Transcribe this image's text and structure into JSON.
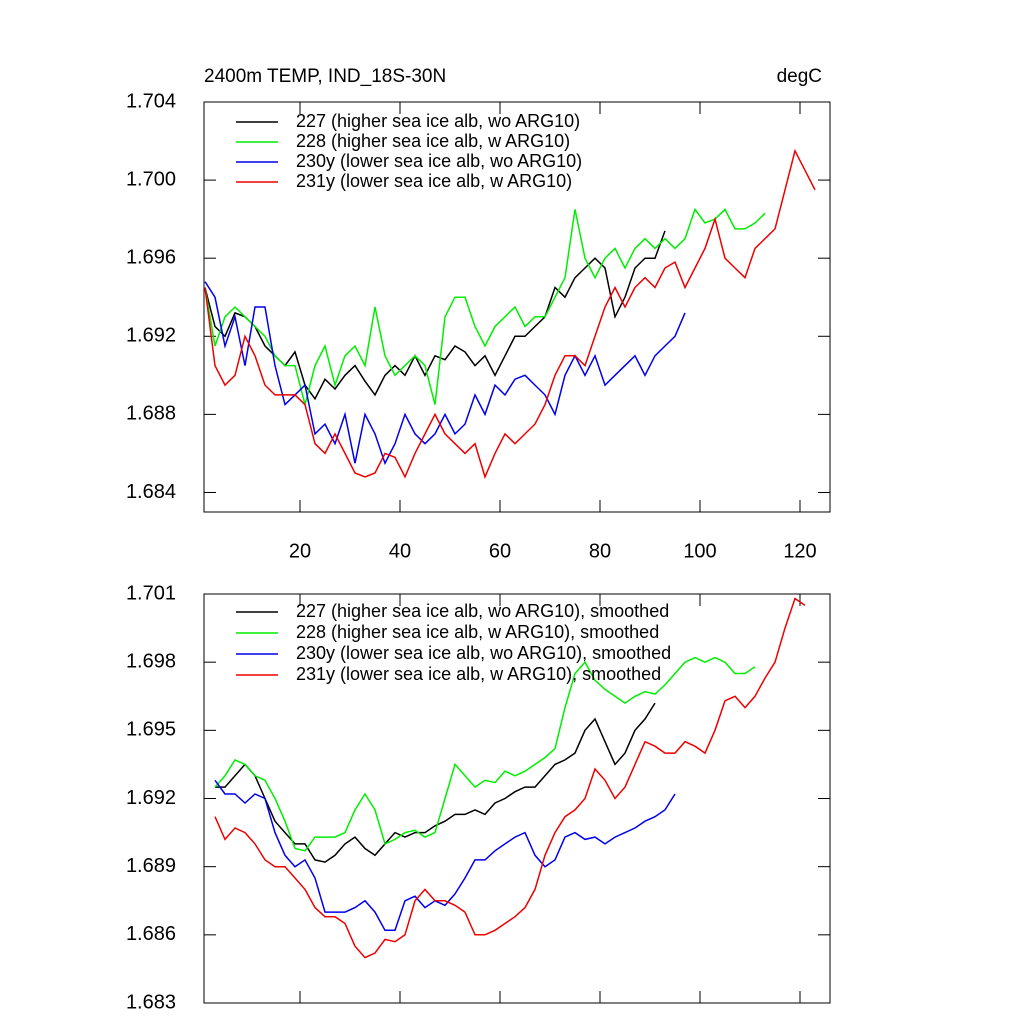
{
  "chart_data": [
    {
      "type": "line",
      "title": "2400m TEMP, IND_18S-30N",
      "unit": "degC",
      "x": [
        1,
        3,
        5,
        7,
        9,
        11,
        13,
        15,
        17,
        19,
        21,
        23,
        25,
        27,
        29,
        31,
        33,
        35,
        37,
        39,
        41,
        43,
        45,
        47,
        49,
        51,
        53,
        55,
        57,
        59,
        61,
        63,
        65,
        67,
        69,
        71,
        73,
        75,
        77,
        79,
        81,
        83,
        85,
        87,
        89,
        91,
        93,
        95,
        97,
        99,
        101,
        103,
        105,
        107,
        109,
        111,
        113,
        115,
        117,
        119,
        121,
        123
      ],
      "xlim": [
        0.8,
        126
      ],
      "xticks": [
        20,
        40,
        60,
        80,
        100,
        120
      ],
      "xtick_labels": true,
      "ylim": [
        1.683,
        1.704
      ],
      "yticks": [
        1.684,
        1.688,
        1.692,
        1.696,
        {
          "value": 1.7,
          "label": "1.700"
        },
        1.704
      ],
      "legend": "upper left",
      "series": [
        {
          "name": "227 (higher sea ice alb, wo ARG10)",
          "color": "#000000",
          "values": [
            1.6945,
            1.6925,
            1.692,
            1.6932,
            1.693,
            1.6925,
            1.6915,
            1.691,
            1.6905,
            1.6912,
            1.6895,
            1.6888,
            1.6898,
            1.6893,
            1.69,
            1.6905,
            1.6897,
            1.689,
            1.69,
            1.6905,
            1.69,
            1.691,
            1.69,
            1.691,
            1.6908,
            1.6915,
            1.6912,
            1.6905,
            1.691,
            1.69,
            1.691,
            1.692,
            1.692,
            1.6925,
            1.693,
            1.6945,
            1.694,
            1.695,
            1.6955,
            1.696,
            1.6955,
            1.693,
            1.694,
            1.6955,
            1.696,
            1.696,
            1.6974,
            null,
            null,
            null,
            null,
            null,
            null,
            null,
            null,
            null,
            null,
            null,
            null,
            null,
            null,
            null
          ]
        },
        {
          "name": "228 (higher sea ice alb, w ARG10)",
          "color": "#00ee00",
          "values": [
            1.6945,
            1.6915,
            1.693,
            1.6935,
            1.693,
            1.6925,
            1.692,
            1.691,
            1.6905,
            1.6905,
            1.6885,
            1.6905,
            1.6915,
            1.6895,
            1.691,
            1.6915,
            1.6905,
            1.6935,
            1.691,
            1.69,
            1.6905,
            1.691,
            1.6905,
            1.6885,
            1.693,
            1.694,
            1.694,
            1.6925,
            1.6915,
            1.6925,
            1.693,
            1.6935,
            1.6925,
            1.693,
            1.693,
            1.694,
            1.695,
            1.6985,
            1.696,
            1.695,
            1.696,
            1.6965,
            1.6955,
            1.6965,
            1.697,
            1.6965,
            1.697,
            1.6965,
            1.697,
            1.6985,
            1.6978,
            1.698,
            1.6985,
            1.6975,
            1.6975,
            1.6978,
            1.6983,
            null,
            null,
            null,
            null,
            null
          ]
        },
        {
          "name": "230y (lower sea ice alb, wo ARG10)",
          "color": "#0000ee",
          "values": [
            1.6948,
            1.694,
            1.6915,
            1.693,
            1.6905,
            1.6935,
            1.6935,
            1.6905,
            1.6885,
            1.689,
            1.6895,
            1.687,
            1.6875,
            1.6865,
            1.688,
            1.6855,
            1.688,
            1.687,
            1.6855,
            1.6865,
            1.688,
            1.687,
            1.6865,
            1.687,
            1.688,
            1.687,
            1.6875,
            1.689,
            1.688,
            1.6895,
            1.689,
            1.6898,
            1.69,
            1.6895,
            1.689,
            1.688,
            1.69,
            1.691,
            1.69,
            1.691,
            1.6895,
            1.69,
            1.6905,
            1.691,
            1.69,
            1.691,
            1.6915,
            1.692,
            1.6932,
            null,
            null,
            null,
            null,
            null,
            null,
            null,
            null,
            null,
            null,
            null,
            null,
            null
          ]
        },
        {
          "name": "231y (lower sea ice alb, w ARG10)",
          "color": "#ee0000",
          "values": [
            1.6945,
            1.6905,
            1.6895,
            1.69,
            1.692,
            1.691,
            1.6895,
            1.689,
            1.689,
            1.689,
            1.6885,
            1.6865,
            1.686,
            1.687,
            1.686,
            1.685,
            1.6848,
            1.685,
            1.686,
            1.6858,
            1.6848,
            1.686,
            1.687,
            1.688,
            1.687,
            1.6865,
            1.686,
            1.6865,
            1.6848,
            1.686,
            1.687,
            1.6865,
            1.687,
            1.6875,
            1.6885,
            1.69,
            1.691,
            1.691,
            1.6905,
            1.692,
            1.6935,
            1.6945,
            1.6935,
            1.6945,
            1.695,
            1.6945,
            1.6955,
            1.6958,
            1.6945,
            1.6955,
            1.6965,
            1.698,
            1.696,
            1.6955,
            1.695,
            1.6965,
            1.697,
            1.6975,
            1.6995,
            1.7015,
            1.7005,
            1.6995
          ]
        }
      ]
    },
    {
      "type": "line",
      "x": [
        3,
        5,
        7,
        9,
        11,
        13,
        15,
        17,
        19,
        21,
        23,
        25,
        27,
        29,
        31,
        33,
        35,
        37,
        39,
        41,
        43,
        45,
        47,
        49,
        51,
        53,
        55,
        57,
        59,
        61,
        63,
        65,
        67,
        69,
        71,
        73,
        75,
        77,
        79,
        81,
        83,
        85,
        87,
        89,
        91,
        93,
        95,
        97,
        99,
        101,
        103,
        105,
        107,
        109,
        111,
        113,
        115,
        117,
        119,
        121
      ],
      "xlim": [
        0.8,
        126
      ],
      "xticks": [
        20,
        40,
        60,
        80,
        100,
        120
      ],
      "xtick_labels": false,
      "ylim": [
        1.683,
        1.701
      ],
      "yticks": [
        1.683,
        1.686,
        1.689,
        1.692,
        1.695,
        1.698,
        1.701
      ],
      "legend": "upper left",
      "series": [
        {
          "name": "227 (higher sea ice alb, wo ARG10), smoothed",
          "color": "#000000",
          "values": [
            1.6925,
            1.6925,
            1.693,
            1.6935,
            1.693,
            1.692,
            1.691,
            1.6905,
            1.69,
            1.69,
            1.6893,
            1.6892,
            1.6895,
            1.69,
            1.6903,
            1.6898,
            1.6895,
            1.69,
            1.6905,
            1.6903,
            1.6905,
            1.6905,
            1.6908,
            1.691,
            1.6913,
            1.6913,
            1.6915,
            1.6913,
            1.6918,
            1.692,
            1.6923,
            1.6925,
            1.6925,
            1.693,
            1.6935,
            1.6937,
            1.694,
            1.695,
            1.6955,
            1.6945,
            1.6935,
            1.694,
            1.695,
            1.6955,
            1.6962,
            null,
            null,
            null,
            null,
            null,
            null,
            null,
            null,
            null,
            null,
            null,
            null,
            null,
            null,
            null
          ]
        },
        {
          "name": "228 (higher sea ice alb, w ARG10), smoothed",
          "color": "#00ee00",
          "values": [
            1.6925,
            1.693,
            1.6937,
            1.6935,
            1.693,
            1.6928,
            1.692,
            1.691,
            1.6898,
            1.6897,
            1.6903,
            1.6903,
            1.6903,
            1.6905,
            1.6915,
            1.6922,
            1.6915,
            1.69,
            1.6902,
            1.6905,
            1.6906,
            1.6903,
            1.6905,
            1.692,
            1.6935,
            1.693,
            1.6925,
            1.6928,
            1.6927,
            1.6932,
            1.693,
            1.6932,
            1.6935,
            1.6938,
            1.6942,
            1.696,
            1.6975,
            1.698,
            1.6972,
            1.6968,
            1.6965,
            1.6962,
            1.6965,
            1.6967,
            1.6966,
            1.697,
            1.6975,
            1.698,
            1.6982,
            1.698,
            1.6982,
            1.698,
            1.6975,
            1.6975,
            1.6978,
            null,
            null,
            null,
            null,
            null
          ]
        },
        {
          "name": "230y (lower sea ice alb, wo ARG10), smoothed",
          "color": "#0000ee",
          "values": [
            1.6928,
            1.6922,
            1.6922,
            1.6918,
            1.6922,
            1.692,
            1.6905,
            1.6895,
            1.689,
            1.6893,
            1.6885,
            1.687,
            1.687,
            1.687,
            1.6872,
            1.6875,
            1.687,
            1.6862,
            1.6862,
            1.6875,
            1.6877,
            1.6872,
            1.6875,
            1.6873,
            1.6878,
            1.6885,
            1.6893,
            1.6893,
            1.6897,
            1.69,
            1.6903,
            1.6905,
            1.6895,
            1.689,
            1.6893,
            1.6903,
            1.6905,
            1.6902,
            1.6903,
            1.69,
            1.6903,
            1.6905,
            1.6907,
            1.691,
            1.6912,
            1.6915,
            1.6922,
            null,
            null,
            null,
            null,
            null,
            null,
            null,
            null,
            null,
            null,
            null,
            null,
            null
          ]
        },
        {
          "name": "231y (lower sea ice alb, w ARG10), smoothed",
          "color": "#ee0000",
          "values": [
            1.6912,
            1.6902,
            1.6907,
            1.6905,
            1.69,
            1.6893,
            1.689,
            1.689,
            1.6885,
            1.688,
            1.6872,
            1.6868,
            1.6868,
            1.6865,
            1.6855,
            1.685,
            1.6852,
            1.6858,
            1.6857,
            1.686,
            1.6875,
            1.688,
            1.6875,
            1.6875,
            1.6873,
            1.687,
            1.686,
            1.686,
            1.6862,
            1.6865,
            1.6868,
            1.6872,
            1.688,
            1.6895,
            1.6905,
            1.6912,
            1.6915,
            1.692,
            1.6933,
            1.6928,
            1.692,
            1.6925,
            1.6935,
            1.6945,
            1.6943,
            1.694,
            1.694,
            1.6945,
            1.6943,
            1.694,
            1.695,
            1.6963,
            1.6965,
            1.696,
            1.6965,
            1.6973,
            1.698,
            1.6995,
            1.7008,
            1.7005
          ]
        }
      ]
    }
  ]
}
